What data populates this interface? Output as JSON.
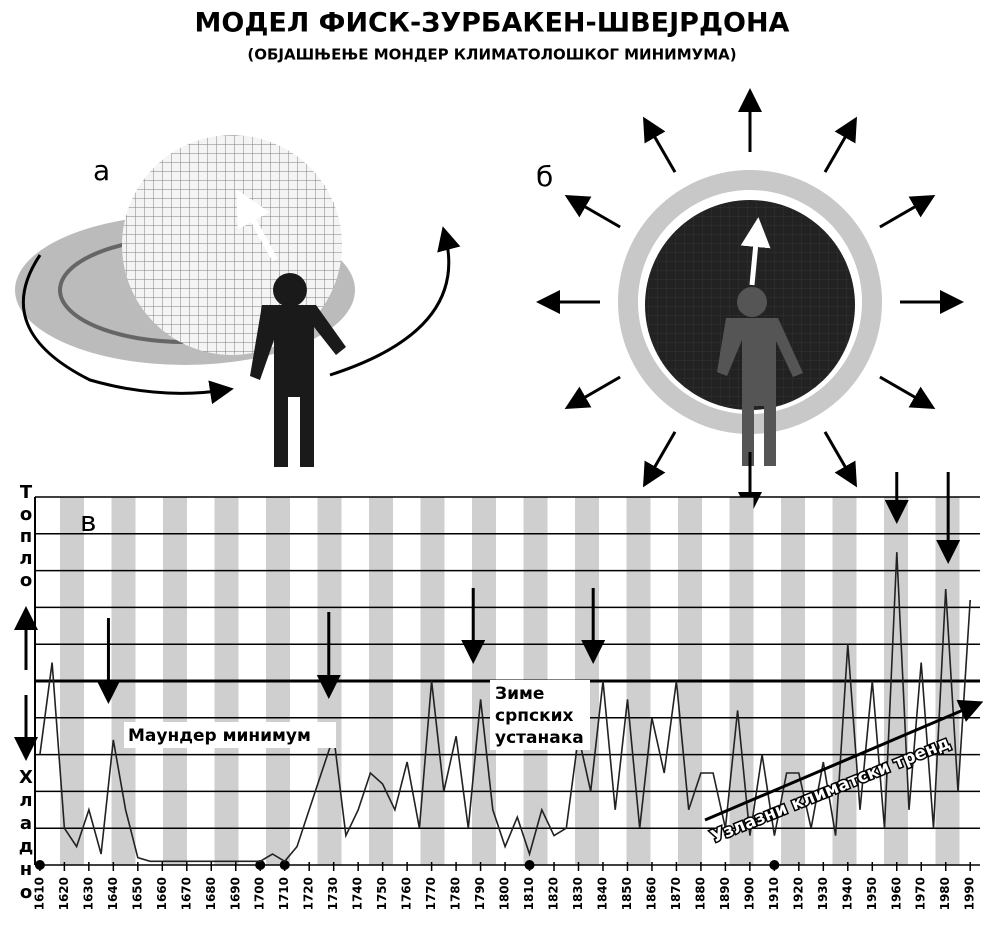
{
  "header": {
    "title": "МОДЕЛ ФИСК-ЗУРБАКЕН-ШВЕЈРДОНА",
    "subtitle": "(ОБЈАШЊЕЊЕ МОНДЕР КЛИМАТОЛОШКОГ МИНИМУМА)"
  },
  "panels": {
    "a": "а",
    "b": "б",
    "c": "в"
  },
  "chart_data": {
    "type": "line",
    "y_axis": {
      "warm": [
        "Т",
        "о",
        "п",
        "л",
        "о"
      ],
      "cold": [
        "Х",
        "л",
        "а",
        "д",
        "н",
        "о"
      ]
    },
    "annotations": {
      "maunder": "Маундер минимум",
      "winters": [
        "Зиме",
        "српских",
        "устанака"
      ],
      "trend": "Узлазни климатски тренд"
    },
    "xlim": [
      1608,
      1994
    ],
    "ylim": [
      0,
      10
    ],
    "xticks": [
      1610,
      1620,
      1630,
      1640,
      1650,
      1660,
      1670,
      1680,
      1690,
      1700,
      1710,
      1720,
      1730,
      1740,
      1750,
      1760,
      1770,
      1780,
      1790,
      1800,
      1810,
      1820,
      1830,
      1840,
      1850,
      1860,
      1870,
      1880,
      1890,
      1900,
      1910,
      1920,
      1930,
      1940,
      1950,
      1960,
      1970,
      1980,
      1990
    ],
    "x": [
      1610,
      1615,
      1620,
      1625,
      1630,
      1635,
      1640,
      1645,
      1650,
      1655,
      1660,
      1665,
      1670,
      1675,
      1680,
      1685,
      1690,
      1695,
      1700,
      1705,
      1710,
      1715,
      1720,
      1725,
      1730,
      1735,
      1740,
      1745,
      1750,
      1755,
      1760,
      1765,
      1770,
      1775,
      1780,
      1785,
      1790,
      1795,
      1800,
      1805,
      1810,
      1815,
      1820,
      1825,
      1830,
      1835,
      1840,
      1845,
      1850,
      1855,
      1860,
      1865,
      1870,
      1875,
      1880,
      1885,
      1890,
      1895,
      1900,
      1905,
      1910,
      1915,
      1920,
      1925,
      1930,
      1935,
      1940,
      1945,
      1950,
      1955,
      1960,
      1965,
      1970,
      1975,
      1980,
      1985,
      1990
    ],
    "series": [
      {
        "color": "#222222",
        "values": [
          3,
          5.5,
          1,
          0.5,
          1.5,
          0.3,
          3.4,
          1.5,
          0.2,
          0.1,
          0.1,
          0.1,
          0.1,
          0.1,
          0.1,
          0.1,
          0.1,
          0.1,
          0.1,
          0.3,
          0.1,
          0.5,
          1.5,
          2.5,
          3.5,
          0.8,
          1.5,
          2.5,
          2.2,
          1.5,
          2.8,
          1,
          5,
          2,
          3.5,
          1,
          4.5,
          1.5,
          0.5,
          1.3,
          0.3,
          1.5,
          0.8,
          1,
          3.5,
          2,
          5,
          1.5,
          4.5,
          1,
          4,
          2.5,
          5,
          1.5,
          2.5,
          2.5,
          1,
          4.2,
          0.8,
          3,
          0.8,
          2.5,
          2.5,
          1,
          2.8,
          0.8,
          6,
          1.5,
          5,
          1,
          8.5,
          1.5,
          5.5,
          1,
          7.5,
          2,
          7.2
        ]
      }
    ]
  }
}
